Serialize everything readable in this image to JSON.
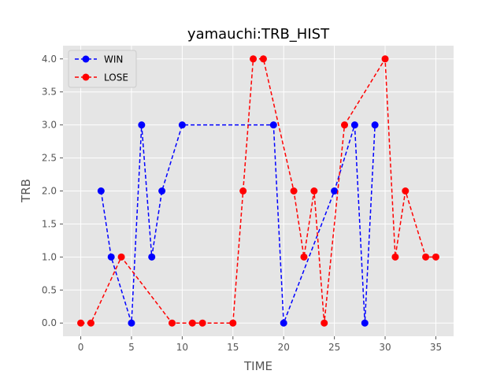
{
  "chart_data": {
    "type": "line",
    "title": "yamauchi:TRB_HIST",
    "xlabel": "TIME",
    "ylabel": "TRB",
    "xlim": [
      -1.75,
      36.75
    ],
    "ylim": [
      -0.2,
      4.2
    ],
    "xticks": [
      0,
      5,
      10,
      15,
      20,
      25,
      30,
      35
    ],
    "yticks": [
      0.0,
      0.5,
      1.0,
      1.5,
      2.0,
      2.5,
      3.0,
      3.5,
      4.0
    ],
    "xtick_labels": [
      "0",
      "5",
      "10",
      "15",
      "20",
      "25",
      "30",
      "35"
    ],
    "ytick_labels": [
      "0.0",
      "0.5",
      "1.0",
      "1.5",
      "2.0",
      "2.5",
      "3.0",
      "3.5",
      "4.0"
    ],
    "grid": true,
    "legend_position": "top-left",
    "series": [
      {
        "name": "WIN",
        "color": "#0000ff",
        "line_style": "dashed",
        "marker": "circle",
        "x": [
          2,
          3,
          5,
          6,
          7,
          8,
          10,
          19,
          20,
          25,
          27,
          28,
          29
        ],
        "y": [
          2,
          1,
          0,
          3,
          1,
          2,
          3,
          3,
          0,
          2,
          3,
          0,
          3
        ]
      },
      {
        "name": "LOSE",
        "color": "#ff0000",
        "line_style": "dashed",
        "marker": "circle",
        "x": [
          0,
          1,
          4,
          9,
          11,
          12,
          15,
          16,
          17,
          18,
          21,
          22,
          23,
          24,
          26,
          30,
          31,
          32,
          34,
          35
        ],
        "y": [
          0,
          0,
          1,
          0,
          0,
          0,
          0,
          2,
          4,
          4,
          2,
          1,
          2,
          0,
          3,
          4,
          1,
          2,
          1,
          1
        ]
      }
    ]
  },
  "colors": {
    "plot_background": "#e5e5e5",
    "grid": "#ffffff",
    "figure_background": "#ffffff"
  }
}
